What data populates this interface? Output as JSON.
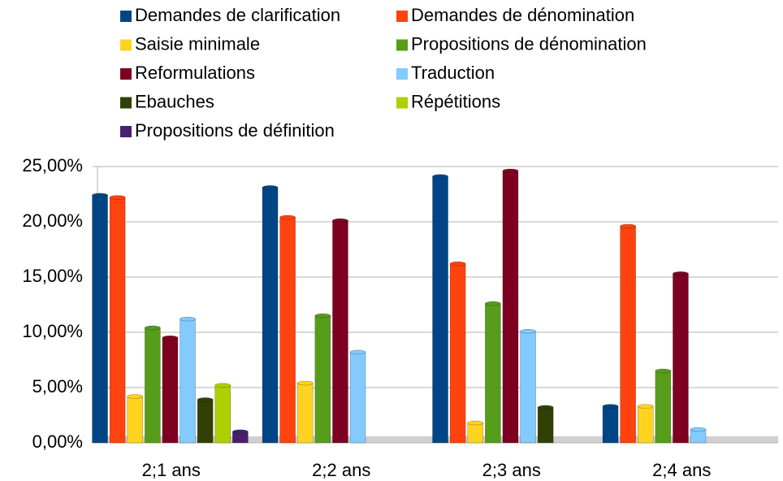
{
  "chart_data": {
    "type": "bar",
    "categories": [
      "2;1 ans",
      "2;2 ans",
      "2;3 ans",
      "2;4 ans"
    ],
    "series": [
      {
        "name": "Demandes de clarification",
        "color": "#004586",
        "values": [
          22.4,
          23.1,
          24.1,
          3.3
        ]
      },
      {
        "name": "Demandes de dénomination",
        "color": "#ff420e",
        "values": [
          22.2,
          20.4,
          16.2,
          19.6
        ]
      },
      {
        "name": "Saisie minimale",
        "color": "#ffd320",
        "values": [
          4.2,
          5.4,
          1.8,
          3.3
        ]
      },
      {
        "name": "Propositions de dénomination",
        "color": "#579d1c",
        "values": [
          10.4,
          11.5,
          12.6,
          6.5
        ]
      },
      {
        "name": "Reformulations",
        "color": "#7e0021",
        "values": [
          9.5,
          20.1,
          24.6,
          15.3
        ]
      },
      {
        "name": "Traduction",
        "color": "#83caff",
        "values": [
          11.2,
          8.2,
          10.1,
          1.2
        ]
      },
      {
        "name": "Ebauches",
        "color": "#314004",
        "values": [
          3.9,
          0,
          3.2,
          0
        ]
      },
      {
        "name": "Répétitions",
        "color": "#aecf00",
        "values": [
          5.2,
          0,
          0,
          0
        ]
      },
      {
        "name": "Propositions de définition",
        "color": "#4b1f6f",
        "values": [
          1.0,
          0,
          0,
          0
        ]
      }
    ],
    "ylim": [
      0,
      25
    ],
    "yticks": [
      {
        "value": 0,
        "label": "0,00%"
      },
      {
        "value": 5,
        "label": "5,00%"
      },
      {
        "value": 10,
        "label": "10,00%"
      },
      {
        "value": 15,
        "label": "15,00%"
      },
      {
        "value": 20,
        "label": "20,00%"
      },
      {
        "value": 25,
        "label": "25,00%"
      }
    ],
    "grid": true,
    "legend": "top"
  }
}
